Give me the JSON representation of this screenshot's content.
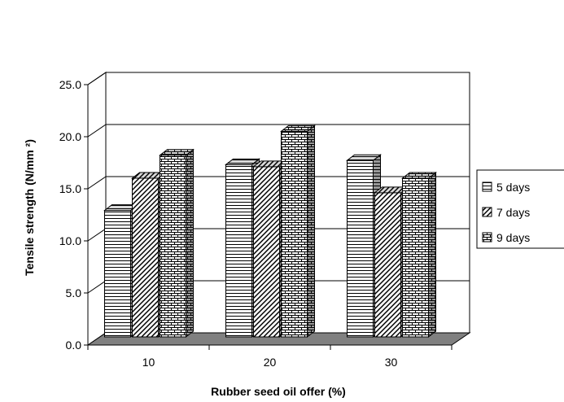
{
  "chart_data": {
    "type": "bar",
    "categories": [
      "10",
      "20",
      "30"
    ],
    "series": [
      {
        "name": "5 days",
        "values": [
          13.7,
          18.1,
          18.5
        ]
      },
      {
        "name": "7 days",
        "values": [
          16.8,
          17.9,
          15.4
        ]
      },
      {
        "name": "9 days",
        "values": [
          19.0,
          21.3,
          16.8
        ]
      }
    ],
    "xlabel": "Rubber seed oil offer (%)",
    "ylabel": "Tensile strength (N/mm ²)",
    "ylim": [
      0,
      25
    ],
    "yticks": [
      "0.0",
      "5.0",
      "10.0",
      "15.0",
      "20.0",
      "25.0"
    ],
    "grid": true,
    "legend_position": "right",
    "style": "3d-clustered-bar",
    "fills": [
      "horizontal-lines",
      "diagonal-hatch",
      "brick"
    ],
    "floor_color": "#808080"
  }
}
